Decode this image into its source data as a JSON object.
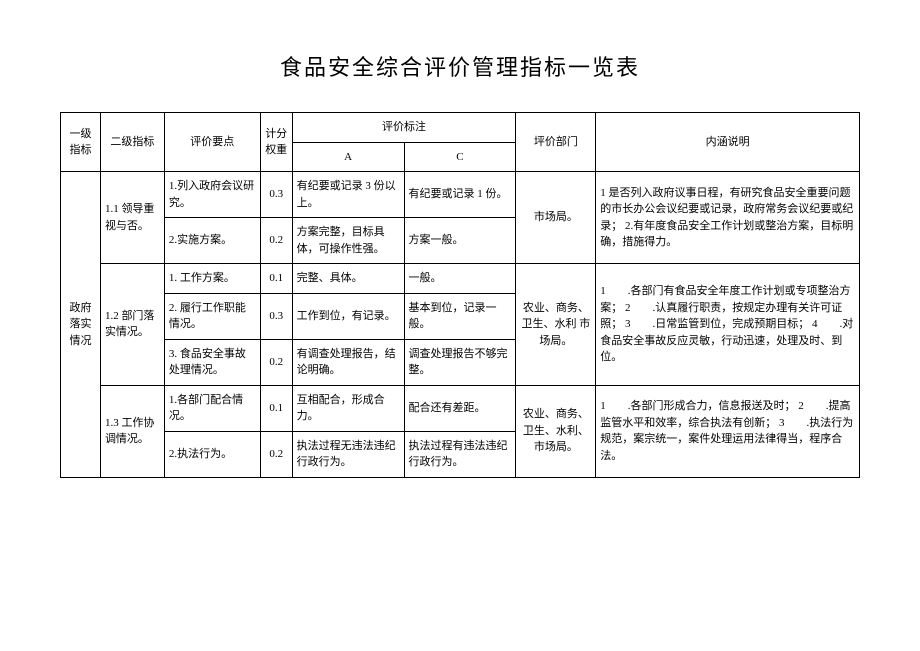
{
  "title": "食品安全综合评价管理指标一览表",
  "headers": {
    "l1": "一级指标",
    "l2": "二级指标",
    "key": "评价要点",
    "weight": "计分权重",
    "note": "评价标注",
    "a": "A",
    "c": "C",
    "dept": "坪价部门",
    "desc": "内涵说明"
  },
  "level1": "政府落实情况",
  "sec1": {
    "name": "1.1 领导重视与否。",
    "r1": {
      "key": "1.列入政府会议研究。",
      "wt": "0.3",
      "a": "有纪要或记录 3 份以上。",
      "c": "有纪要或记录 1 份。"
    },
    "r2": {
      "key": "2.实施方案。",
      "wt": "0.2",
      "a": "方案完整，目标具体，可操作性强。",
      "c": "方案一般。"
    },
    "dept": "市场局。",
    "desc": "1 是否列入政府议事日程，有研究食品安全重要问题的市长办公会议纪要或记录，政府常务会议纪要或纪录；\n2.有年度食品安全工作计划或整治方案，目标明确，措施得力。"
  },
  "sec2": {
    "name": "1.2 部门落实情况。",
    "r1": {
      "key": "1. 工作方案。",
      "wt": "0.1",
      "a": "完整、具体。",
      "c": "一般。"
    },
    "r2": {
      "key": "2. 履行工作职能情况。",
      "wt": "0.3",
      "a": "工作到位，有记录。",
      "c": "基本到位，记录一般。"
    },
    "r3": {
      "key": "3. 食品安全事故处理情况。",
      "wt": "0.2",
      "a": "有调查处理报告，结论明确。",
      "c": "调查处理报告不够完整。"
    },
    "dept": "农业、商务、卫生、水利 市场局。",
    "desc": "1　　.各部门有食品安全年度工作计划或专项整治方案；\n2　　.认真履行职责，按规定办理有关许可证照；\n3　　.日常监管到位，完成预期目标；\n4　　.对食品安全事故反应灵敏，行动迅速，处理及时、到位。"
  },
  "sec3": {
    "name": "1.3 工作协调情况。",
    "r1": {
      "key": "1.各部门配合情况。",
      "wt": "0.1",
      "a": "互相配合，形成合力。",
      "c": "配合还有差距。"
    },
    "r2": {
      "key": "2.执法行为。",
      "wt": "0.2",
      "a": "执法过程无违法违纪行政行为。",
      "c": "执法过程有违法违纪行政行为。"
    },
    "dept": "农业、商务、卫生、水利、市场局。",
    "desc": "1　　.各部门形成合力，信息报送及时；\n2　　.提高监管水平和效率，综合执法有创新；\n3　　.执法行为规范，案宗统一，案件处理运用法律得当，程序合法。"
  }
}
